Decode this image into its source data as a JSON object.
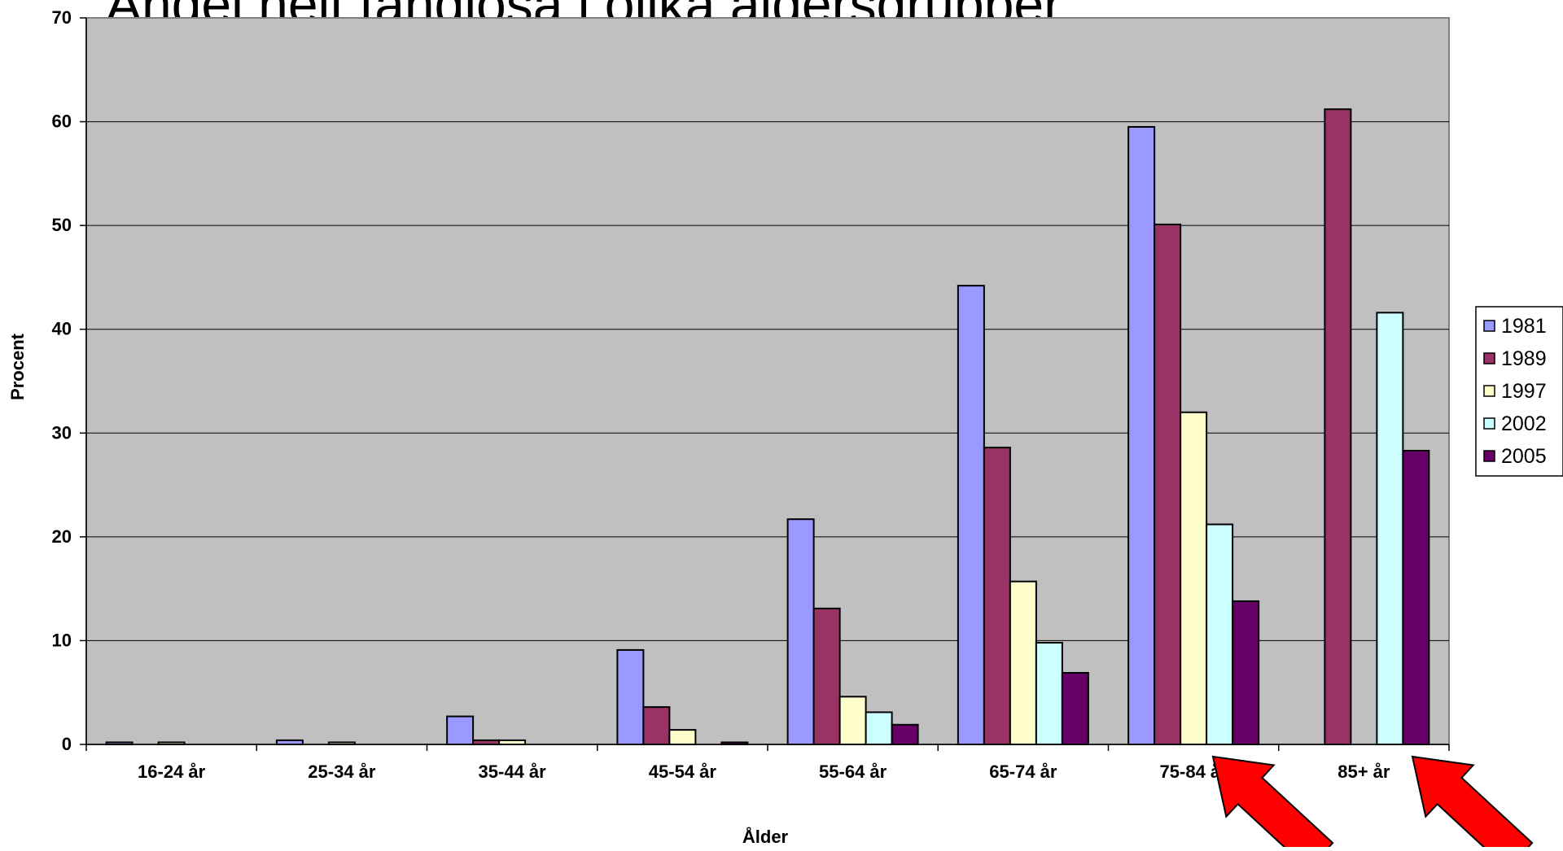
{
  "slide_title": "Andel helt tandlösa i olika åldersgrupper",
  "chart_data": {
    "type": "bar",
    "title": "",
    "xlabel": "Ålder",
    "ylabel": "Procent",
    "ylim": [
      0,
      70
    ],
    "yticks": [
      0,
      10,
      20,
      30,
      40,
      50,
      60,
      70
    ],
    "grid": true,
    "legend_position": "right",
    "categories": [
      "16-24 år",
      "25-34 år",
      "35-44 år",
      "45-54 år",
      "55-64 år",
      "65-74 år",
      "75-84 år",
      "85+   år"
    ],
    "series": [
      {
        "name": "1981",
        "color": "#9999ff",
        "values": [
          0.2,
          0.4,
          2.7,
          9.1,
          21.7,
          44.2,
          59.5,
          null
        ]
      },
      {
        "name": "1989",
        "color": "#993366",
        "values": [
          null,
          null,
          0.4,
          3.6,
          13.1,
          28.6,
          50.1,
          61.2
        ]
      },
      {
        "name": "1997",
        "color": "#ffffcc",
        "values": [
          0.2,
          0.2,
          0.4,
          1.4,
          4.6,
          15.7,
          32.0,
          null
        ]
      },
      {
        "name": "2002",
        "color": "#ccffff",
        "values": [
          null,
          null,
          null,
          null,
          3.1,
          9.8,
          21.2,
          41.6
        ]
      },
      {
        "name": "2005",
        "color": "#660066",
        "values": [
          null,
          null,
          null,
          0.2,
          1.9,
          6.9,
          13.8,
          28.3
        ]
      }
    ],
    "annotations": [
      {
        "type": "arrow",
        "color": "#ff0000",
        "points_to": "75-84 år, 2002"
      },
      {
        "type": "arrow",
        "color": "#ff0000",
        "points_to": "85+ år, 2002"
      }
    ]
  },
  "colors": {
    "plot_background": "#c0c0c0",
    "gridline": "#000000",
    "arrow": "#ff0000"
  }
}
